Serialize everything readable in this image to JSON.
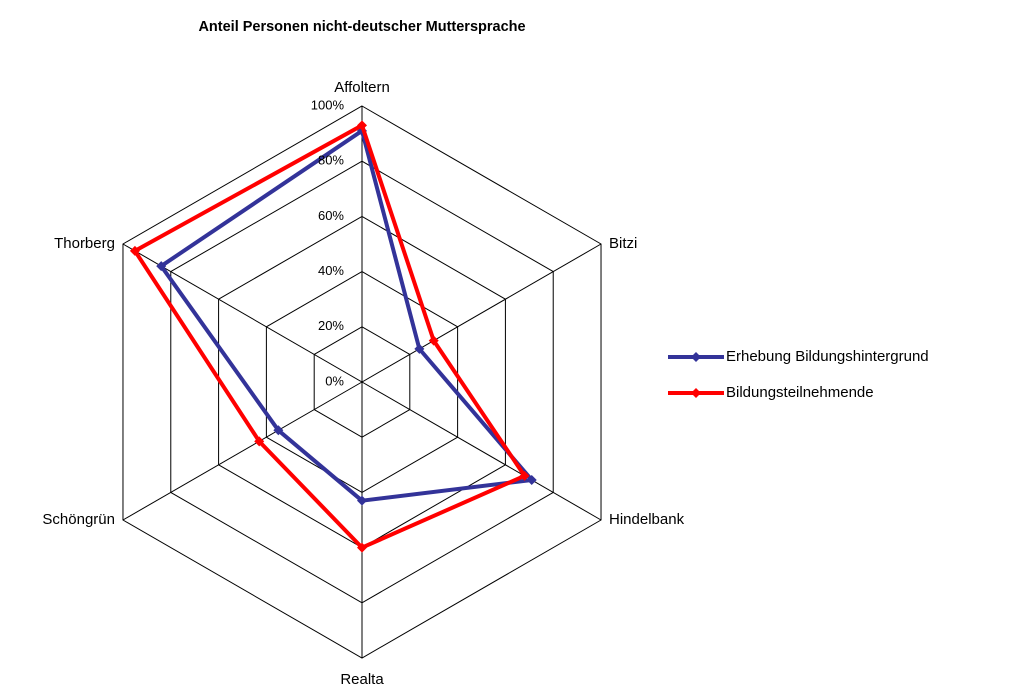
{
  "chart_data": {
    "type": "radar",
    "title": "Anteil Personen nicht-deutscher Muttersprache",
    "categories": [
      "Affoltern",
      "Bitzi",
      "Hindelbank",
      "Realta",
      "Schöngrün",
      "Thorberg"
    ],
    "series": [
      {
        "name": "Erhebung Bildungshintergrund",
        "color": "#333399",
        "values": [
          91,
          24,
          71,
          43,
          35,
          84
        ]
      },
      {
        "name": "Bildungsteilnehmende",
        "color": "#ff0000",
        "values": [
          93,
          30,
          68,
          60,
          43,
          95
        ]
      }
    ],
    "ylim": [
      0,
      100
    ],
    "yticks": [
      {
        "value": 0,
        "label": "0%"
      },
      {
        "value": 20,
        "label": "20%"
      },
      {
        "value": 40,
        "label": "40%"
      },
      {
        "value": 60,
        "label": "60%"
      },
      {
        "value": 80,
        "label": "80%"
      },
      {
        "value": 100,
        "label": "100%"
      }
    ],
    "grid": true,
    "legend": "right"
  }
}
